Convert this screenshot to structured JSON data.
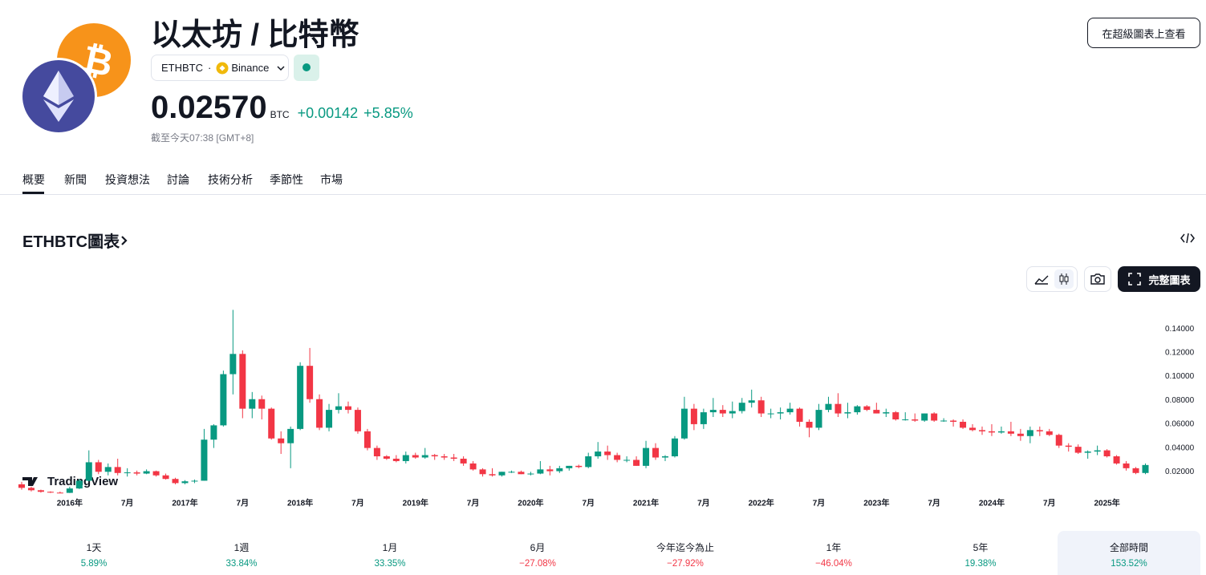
{
  "header": {
    "title": "以太坊 / 比特幣",
    "symbol": "ETHBTC",
    "exchange": "Binance",
    "price": "0.02570",
    "currency": "BTC",
    "change": "+0.00142",
    "change_percent": "+5.85%",
    "timestamp": "截至今天07:38 [GMT+8]",
    "supercharts_button": "在超級圖表上查看"
  },
  "tabs": [
    "概要",
    "新聞",
    "投資想法",
    "討論",
    "技術分析",
    "季節性",
    "市場"
  ],
  "chart_section": {
    "title": "ETHBTC圖表",
    "full_chart_button": "完整圖表",
    "watermark": "TradingView"
  },
  "chart_data": {
    "type": "candlestick",
    "up_color": "#089981",
    "down_color": "#f23645",
    "categories": [
      null,
      null,
      null,
      null,
      null,
      "2016年",
      null,
      null,
      null,
      null,
      null,
      "7月",
      null,
      null,
      null,
      null,
      null,
      "2017年",
      null,
      null,
      null,
      null,
      null,
      "7月",
      null,
      null,
      null,
      null,
      null,
      "2018年",
      null,
      null,
      null,
      null,
      null,
      "7月",
      null,
      null,
      null,
      null,
      null,
      "2019年",
      null,
      null,
      null,
      null,
      null,
      "7月",
      null,
      null,
      null,
      null,
      null,
      "2020年",
      null,
      null,
      null,
      null,
      null,
      "7月",
      null,
      null,
      null,
      null,
      null,
      "2021年",
      null,
      null,
      null,
      null,
      null,
      "7月",
      null,
      null,
      null,
      null,
      null,
      "2022年",
      null,
      null,
      null,
      null,
      null,
      "7月",
      null,
      null,
      null,
      null,
      null,
      "2023年",
      null,
      null,
      null,
      null,
      null,
      "7月",
      null,
      null,
      null,
      null,
      null,
      "2024年",
      null,
      null,
      null,
      null,
      null,
      "7月",
      null,
      null,
      null,
      null,
      null,
      "2025年",
      null,
      null,
      null,
      null
    ],
    "open": [
      0.0095,
      0.0065,
      0.0045,
      0.0032,
      0.0025,
      0.0023,
      0.006,
      0.0125,
      0.028,
      0.02,
      0.024,
      0.019,
      0.0195,
      0.0185,
      0.0205,
      0.017,
      0.014,
      0.0105,
      0.012,
      0.0125,
      0.047,
      0.059,
      0.102,
      0.119,
      0.073,
      0.081,
      0.073,
      0.048,
      0.044,
      0.056,
      0.109,
      0.081,
      0.057,
      0.072,
      0.075,
      0.072,
      0.054,
      0.04,
      0.033,
      0.031,
      0.029,
      0.034,
      0.032,
      0.034,
      0.033,
      0.032,
      0.031,
      0.027,
      0.022,
      0.018,
      0.017,
      0.02,
      0.02,
      0.018,
      0.0185,
      0.022,
      0.0205,
      0.023,
      0.025,
      0.024,
      0.033,
      0.037,
      0.034,
      0.03,
      0.03,
      0.025,
      0.04,
      0.032,
      0.033,
      0.048,
      0.073,
      0.06,
      0.07,
      0.072,
      0.069,
      0.071,
      0.078,
      0.08,
      0.069,
      0.069,
      0.07,
      0.073,
      0.062,
      0.057,
      0.072,
      0.077,
      0.069,
      0.07,
      0.075,
      0.072,
      0.069,
      0.07,
      0.064,
      0.064,
      0.063,
      0.069,
      0.063,
      0.063,
      0.062,
      0.057,
      0.055,
      0.054,
      0.053,
      0.054,
      0.052,
      0.05,
      0.055,
      0.054,
      0.051,
      0.042,
      0.041,
      0.036,
      0.037,
      0.038,
      0.033,
      0.027,
      0.023,
      0.019
    ],
    "high": [
      0.0115,
      0.0075,
      0.005,
      0.0036,
      0.0034,
      0.0075,
      0.014,
      0.038,
      0.03,
      0.027,
      0.031,
      0.023,
      0.021,
      0.022,
      0.021,
      0.0185,
      0.015,
      0.013,
      0.0135,
      0.056,
      0.06,
      0.105,
      0.156,
      0.122,
      0.087,
      0.084,
      0.074,
      0.054,
      0.058,
      0.112,
      0.124,
      0.085,
      0.077,
      0.086,
      0.079,
      0.074,
      0.056,
      0.042,
      0.034,
      0.034,
      0.037,
      0.036,
      0.04,
      0.035,
      0.035,
      0.035,
      0.033,
      0.029,
      0.023,
      0.023,
      0.02,
      0.021,
      0.021,
      0.02,
      0.029,
      0.025,
      0.025,
      0.025,
      0.026,
      0.036,
      0.045,
      0.042,
      0.036,
      0.033,
      0.033,
      0.046,
      0.044,
      0.034,
      0.05,
      0.083,
      0.077,
      0.073,
      0.082,
      0.076,
      0.079,
      0.082,
      0.089,
      0.083,
      0.073,
      0.074,
      0.078,
      0.074,
      0.064,
      0.077,
      0.083,
      0.086,
      0.078,
      0.076,
      0.076,
      0.078,
      0.073,
      0.071,
      0.07,
      0.069,
      0.069,
      0.07,
      0.065,
      0.064,
      0.064,
      0.06,
      0.058,
      0.06,
      0.058,
      0.062,
      0.056,
      0.058,
      0.058,
      0.056,
      0.052,
      0.044,
      0.043,
      0.038,
      0.042,
      0.039,
      0.034,
      0.029,
      0.024,
      0.027
    ],
    "low": [
      0.005,
      0.0035,
      0.0025,
      0.0022,
      0.002,
      0.0022,
      0.0055,
      0.012,
      0.018,
      0.017,
      0.017,
      0.016,
      0.017,
      0.018,
      0.016,
      0.0135,
      0.0095,
      0.0095,
      0.0105,
      0.0125,
      0.04,
      0.058,
      0.085,
      0.065,
      0.065,
      0.064,
      0.047,
      0.035,
      0.023,
      0.055,
      0.078,
      0.055,
      0.054,
      0.069,
      0.069,
      0.052,
      0.038,
      0.03,
      0.03,
      0.028,
      0.027,
      0.031,
      0.031,
      0.03,
      0.03,
      0.029,
      0.025,
      0.021,
      0.016,
      0.016,
      0.016,
      0.019,
      0.018,
      0.017,
      0.018,
      0.017,
      0.019,
      0.021,
      0.023,
      0.023,
      0.031,
      0.03,
      0.028,
      0.028,
      0.025,
      0.023,
      0.03,
      0.029,
      0.032,
      0.047,
      0.055,
      0.056,
      0.066,
      0.066,
      0.065,
      0.069,
      0.074,
      0.066,
      0.065,
      0.064,
      0.068,
      0.058,
      0.049,
      0.055,
      0.07,
      0.066,
      0.065,
      0.068,
      0.071,
      0.069,
      0.066,
      0.063,
      0.063,
      0.062,
      0.062,
      0.062,
      0.062,
      0.058,
      0.056,
      0.054,
      0.051,
      0.05,
      0.052,
      0.05,
      0.046,
      0.044,
      0.05,
      0.05,
      0.04,
      0.037,
      0.035,
      0.031,
      0.034,
      0.032,
      0.026,
      0.021,
      0.018,
      0.018
    ],
    "close": [
      0.0065,
      0.0045,
      0.0032,
      0.0025,
      0.0023,
      0.006,
      0.0125,
      0.028,
      0.02,
      0.024,
      0.019,
      0.0195,
      0.0185,
      0.0205,
      0.017,
      0.014,
      0.0105,
      0.012,
      0.0125,
      0.047,
      0.059,
      0.102,
      0.119,
      0.073,
      0.081,
      0.073,
      0.048,
      0.044,
      0.056,
      0.109,
      0.081,
      0.057,
      0.072,
      0.075,
      0.072,
      0.054,
      0.04,
      0.033,
      0.031,
      0.029,
      0.034,
      0.032,
      0.034,
      0.033,
      0.032,
      0.031,
      0.027,
      0.022,
      0.018,
      0.017,
      0.02,
      0.02,
      0.018,
      0.0185,
      0.022,
      0.0205,
      0.023,
      0.025,
      0.024,
      0.033,
      0.037,
      0.034,
      0.03,
      0.03,
      0.025,
      0.04,
      0.032,
      0.033,
      0.048,
      0.073,
      0.06,
      0.07,
      0.072,
      0.069,
      0.071,
      0.078,
      0.08,
      0.069,
      0.069,
      0.07,
      0.073,
      0.062,
      0.057,
      0.072,
      0.077,
      0.069,
      0.07,
      0.075,
      0.072,
      0.069,
      0.07,
      0.064,
      0.064,
      0.063,
      0.069,
      0.063,
      0.063,
      0.062,
      0.057,
      0.055,
      0.054,
      0.053,
      0.054,
      0.052,
      0.05,
      0.055,
      0.054,
      0.051,
      0.042,
      0.041,
      0.036,
      0.037,
      0.038,
      0.033,
      0.027,
      0.023,
      0.019,
      0.0257
    ],
    "ylim": [
      0,
      0.163
    ],
    "yticks": [
      {
        "value": 0.02,
        "label": "0.02000"
      },
      {
        "value": 0.04,
        "label": "0.04000"
      },
      {
        "value": 0.06,
        "label": "0.06000"
      },
      {
        "value": 0.08,
        "label": "0.08000"
      },
      {
        "value": 0.1,
        "label": "0.10000"
      },
      {
        "value": 0.12,
        "label": "0.12000"
      },
      {
        "value": 0.14,
        "label": "0.14000"
      }
    ]
  },
  "periods": [
    {
      "label": "1天",
      "value": "5.89%"
    },
    {
      "label": "1週",
      "value": "33.84%"
    },
    {
      "label": "1月",
      "value": "33.35%"
    },
    {
      "label": "6月",
      "value": "−27.08%"
    },
    {
      "label": "今年迄今為止",
      "value": "−27.92%"
    },
    {
      "label": "1年",
      "value": "−46.04%"
    },
    {
      "label": "5年",
      "value": "19.38%"
    },
    {
      "label": "全部時間",
      "value": "153.52%"
    }
  ]
}
